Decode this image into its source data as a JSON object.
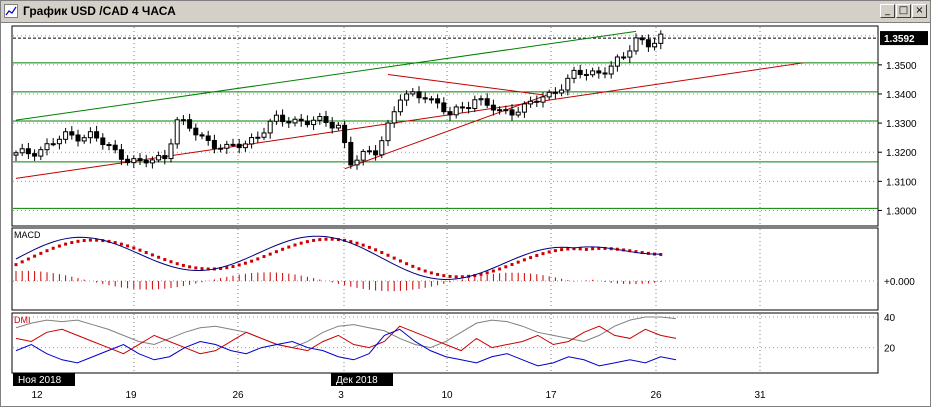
{
  "window": {
    "title": "График USD /CAD  4 ЧАСА",
    "buttons": {
      "minimize": "_",
      "maximize": "□",
      "close": "×"
    },
    "colors": {
      "titlebar": "#d4d0c8",
      "chart_bg": "#ffffff"
    }
  },
  "chart_data": [
    {
      "type": "candlestick",
      "panel": "price",
      "ylim": [
        1.295,
        1.363
      ],
      "y_ticks": [
        "1.3500",
        "1.3400",
        "1.3300",
        "1.3200",
        "1.3100",
        "1.3000"
      ],
      "y_tick_values": [
        1.35,
        1.34,
        1.33,
        1.32,
        1.31,
        1.3
      ],
      "current_price_label": "1.3592",
      "current_price": 1.3592,
      "horizontal_levels": [
        1.3592,
        1.3507,
        1.3407,
        1.3307,
        1.3167,
        1.3007
      ],
      "trendlines": [
        {
          "name": "",
          "color": "#008000",
          "from": [
            0,
            1.331
          ],
          "to": [
            100,
            1.3615
          ]
        },
        {
          "name": "",
          "color": "#c00000",
          "from": [
            0,
            1.311
          ],
          "to": [
            127,
            1.3507
          ]
        },
        {
          "name": "",
          "color": "#c00000",
          "from": [
            53,
            1.3143
          ],
          "to": [
            87,
            1.3407
          ]
        },
        {
          "name": "",
          "color": "#c00000",
          "from": [
            60,
            1.3467
          ],
          "to": [
            85,
            1.3397
          ]
        }
      ],
      "close_path": [
        [
          0,
          1.319
        ],
        [
          4,
          1.321
        ],
        [
          8,
          1.3255
        ],
        [
          12,
          1.326
        ],
        [
          16,
          1.32
        ],
        [
          20,
          1.316
        ],
        [
          24,
          1.3185
        ],
        [
          26,
          1.331
        ],
        [
          30,
          1.325
        ],
        [
          34,
          1.321
        ],
        [
          37,
          1.323
        ],
        [
          42,
          1.331
        ],
        [
          46,
          1.331
        ],
        [
          52,
          1.3295
        ],
        [
          54,
          1.3165
        ],
        [
          58,
          1.3205
        ],
        [
          62,
          1.3385
        ],
        [
          66,
          1.34
        ],
        [
          70,
          1.3325
        ],
        [
          74,
          1.3385
        ],
        [
          78,
          1.3335
        ],
        [
          82,
          1.3355
        ],
        [
          86,
          1.3397
        ],
        [
          90,
          1.3465
        ],
        [
          94,
          1.3475
        ],
        [
          98,
          1.352
        ],
        [
          100,
          1.3592
        ],
        [
          102,
          1.3575
        ],
        [
          104,
          1.359
        ]
      ]
    },
    {
      "type": "line",
      "panel": "macd",
      "title": "MACD",
      "y_ticks": [
        "+0.000"
      ],
      "series": [
        {
          "name": "",
          "color": "#cc0000",
          "style": "dots"
        },
        {
          "name": "",
          "color": "#000080",
          "style": "line"
        },
        {
          "name": "",
          "color": "#cc0000",
          "style": "histogram"
        }
      ]
    },
    {
      "type": "line",
      "panel": "dmi",
      "title": "DMI",
      "y_ticks": [
        "40",
        "20"
      ],
      "y_tick_values": [
        40,
        20
      ],
      "ylim": [
        4,
        42
      ],
      "series": [
        {
          "name": "",
          "color": "#808080",
          "values": [
            33,
            36,
            38,
            37,
            38,
            35,
            32,
            28,
            24,
            22,
            26,
            30,
            33,
            34,
            32,
            30,
            26,
            22,
            20,
            24,
            30,
            34,
            35,
            33,
            31,
            26,
            22,
            20,
            24,
            30,
            36,
            38,
            37,
            34,
            30,
            28,
            26,
            24,
            28,
            34,
            38,
            40,
            40,
            39
          ]
        },
        {
          "name": "",
          "color": "#cc0000",
          "values": [
            26,
            24,
            30,
            32,
            28,
            24,
            20,
            16,
            22,
            28,
            24,
            20,
            16,
            18,
            24,
            30,
            26,
            22,
            20,
            18,
            24,
            28,
            22,
            20,
            24,
            34,
            30,
            26,
            22,
            18,
            26,
            20,
            22,
            24,
            28,
            22,
            24,
            30,
            34,
            28,
            26,
            32,
            28,
            26
          ]
        },
        {
          "name": "",
          "color": "#0000cc",
          "values": [
            18,
            22,
            16,
            12,
            10,
            14,
            18,
            22,
            16,
            12,
            14,
            20,
            24,
            22,
            18,
            16,
            20,
            22,
            24,
            20,
            18,
            14,
            12,
            16,
            28,
            32,
            24,
            18,
            14,
            12,
            10,
            14,
            16,
            12,
            8,
            10,
            14,
            12,
            8,
            10,
            12,
            10,
            14,
            12
          ]
        }
      ]
    }
  ],
  "x_axis": {
    "labels": [
      "12",
      "19",
      "26",
      "3",
      "10",
      "17",
      "26",
      "31"
    ],
    "months": [
      "Ноя 2018",
      "Дек 2018"
    ]
  }
}
